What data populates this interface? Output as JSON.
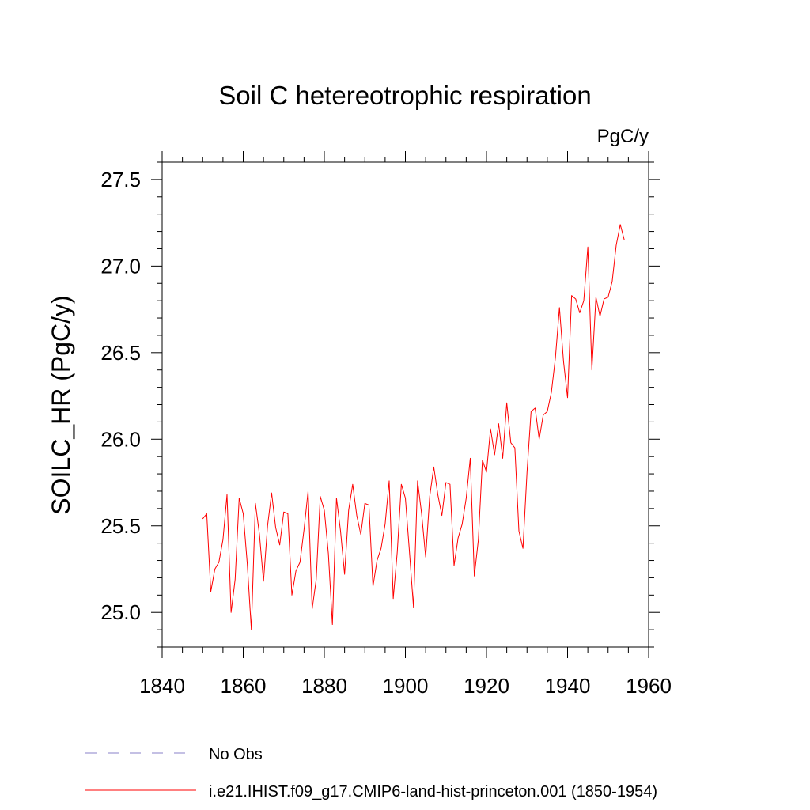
{
  "chart_data": {
    "type": "line",
    "title": "Soil C hetereotrophic respiration",
    "units_label": "PgC/y",
    "ylabel": "SOILC_HR  (PgC/y)",
    "xlabel": "",
    "xlim": [
      1840,
      1960
    ],
    "ylim": [
      24.8,
      27.6
    ],
    "xticks": [
      1840,
      1860,
      1880,
      1900,
      1920,
      1940,
      1960
    ],
    "xtick_labels": [
      "1840",
      "1860",
      "1880",
      "1900",
      "1920",
      "1940",
      "1960"
    ],
    "yticks": [
      25.0,
      25.5,
      26.0,
      26.5,
      27.0,
      27.5
    ],
    "ytick_labels": [
      "25.0",
      "25.5",
      "26.0",
      "26.5",
      "27.0",
      "27.5"
    ],
    "grid": false,
    "legend_position": "bottom",
    "series": [
      {
        "name": "No Obs",
        "color": "#8a80c8",
        "dash": "dashed",
        "x": [],
        "values": []
      },
      {
        "name": "i.e21.IHIST.f09_g17.CMIP6-land-hist-princeton.001 (1850-1954)",
        "color": "#ff0000",
        "dash": "solid",
        "x": [
          1850,
          1851,
          1852,
          1853,
          1854,
          1855,
          1856,
          1857,
          1858,
          1859,
          1860,
          1861,
          1862,
          1863,
          1864,
          1865,
          1866,
          1867,
          1868,
          1869,
          1870,
          1871,
          1872,
          1873,
          1874,
          1875,
          1876,
          1877,
          1878,
          1879,
          1880,
          1881,
          1882,
          1883,
          1884,
          1885,
          1886,
          1887,
          1888,
          1889,
          1890,
          1891,
          1892,
          1893,
          1894,
          1895,
          1896,
          1897,
          1898,
          1899,
          1900,
          1901,
          1902,
          1903,
          1904,
          1905,
          1906,
          1907,
          1908,
          1909,
          1910,
          1911,
          1912,
          1913,
          1914,
          1915,
          1916,
          1917,
          1918,
          1919,
          1920,
          1921,
          1922,
          1923,
          1924,
          1925,
          1926,
          1927,
          1928,
          1929,
          1930,
          1931,
          1932,
          1933,
          1934,
          1935,
          1936,
          1937,
          1938,
          1939,
          1940,
          1941,
          1942,
          1943,
          1944,
          1945,
          1946,
          1947,
          1948,
          1949,
          1950,
          1951,
          1952,
          1953,
          1954
        ],
        "values": [
          25.54,
          25.57,
          25.12,
          25.25,
          25.29,
          25.42,
          25.68,
          25.0,
          25.19,
          25.66,
          25.57,
          25.28,
          24.9,
          25.63,
          25.45,
          25.18,
          25.5,
          25.69,
          25.49,
          25.39,
          25.58,
          25.57,
          25.1,
          25.24,
          25.29,
          25.48,
          25.7,
          25.02,
          25.19,
          25.67,
          25.59,
          25.34,
          24.93,
          25.66,
          25.47,
          25.22,
          25.59,
          25.74,
          25.56,
          25.45,
          25.63,
          25.62,
          25.15,
          25.3,
          25.37,
          25.51,
          25.76,
          25.08,
          25.35,
          25.74,
          25.66,
          25.35,
          25.03,
          25.76,
          25.57,
          25.32,
          25.67,
          25.84,
          25.68,
          25.56,
          25.75,
          25.74,
          25.27,
          25.43,
          25.51,
          25.66,
          25.89,
          25.21,
          25.42,
          25.88,
          25.81,
          26.06,
          25.91,
          26.09,
          25.89,
          26.21,
          25.98,
          25.95,
          25.47,
          25.37,
          25.81,
          26.16,
          26.18,
          26.0,
          26.14,
          26.16,
          26.27,
          26.47,
          26.76,
          26.45,
          26.24,
          26.83,
          26.81,
          26.73,
          26.8,
          27.11,
          26.4,
          26.82,
          26.71,
          26.81,
          26.82,
          26.91,
          27.12,
          27.24,
          27.15
        ]
      }
    ]
  }
}
